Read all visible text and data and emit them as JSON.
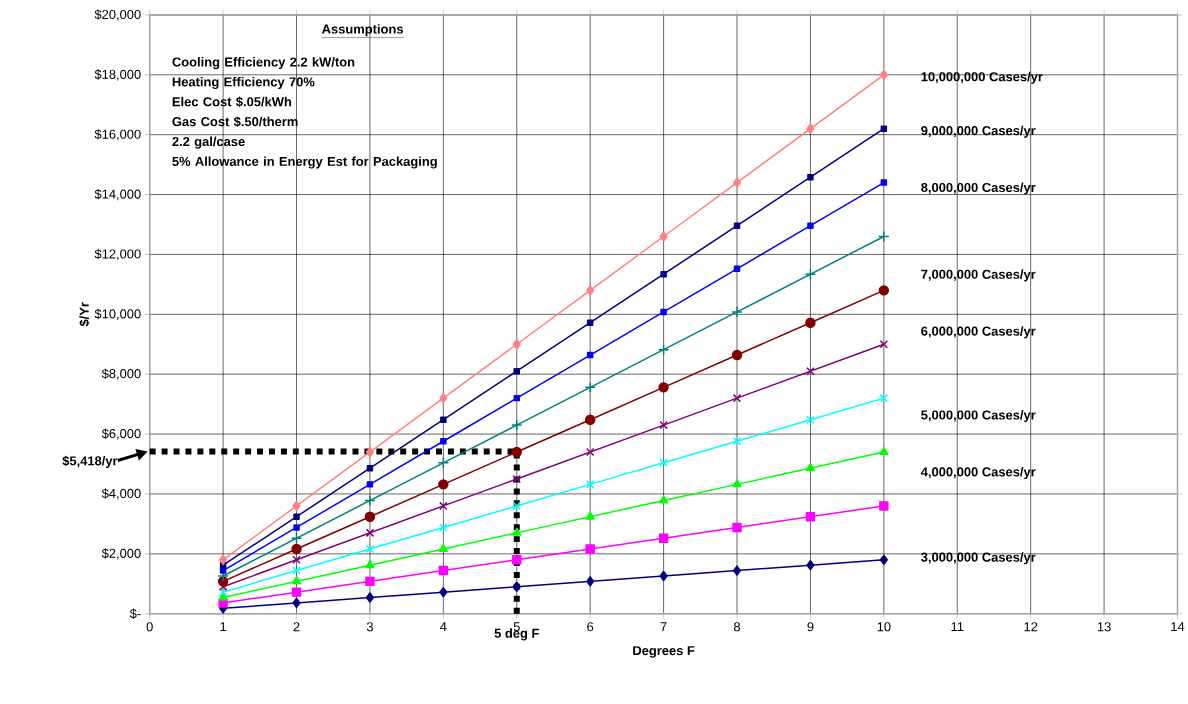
{
  "chart_data": {
    "type": "line",
    "xlabel": "Degrees F",
    "ylabel": "$/Yr",
    "x": [
      1,
      2,
      3,
      4,
      5,
      6,
      7,
      8,
      9,
      10
    ],
    "series": [
      {
        "color": "#000080",
        "marker": "diamond",
        "values": [
          180,
          360,
          540,
          720,
          900,
          1080,
          1260,
          1440,
          1620,
          1800
        ]
      },
      {
        "color": "#ff00ff",
        "marker": "square",
        "values": [
          360,
          720,
          1080,
          1440,
          1800,
          2160,
          2520,
          2880,
          3240,
          3600
        ]
      },
      {
        "color": "#00ff00",
        "marker": "triangle",
        "values": [
          540,
          1080,
          1620,
          2160,
          2700,
          3240,
          3780,
          4320,
          4860,
          5400
        ]
      },
      {
        "color": "#00ffff",
        "marker": "cross",
        "values": [
          720,
          1440,
          2160,
          2880,
          3600,
          4320,
          5040,
          5760,
          6480,
          7200
        ]
      },
      {
        "color": "#800080",
        "marker": "cross",
        "values": [
          900,
          1800,
          2700,
          3600,
          4500,
          5400,
          6300,
          7200,
          8100,
          9000
        ]
      },
      {
        "color": "#800000",
        "marker": "circle",
        "values": [
          1080,
          2160,
          3240,
          4320,
          5400,
          6480,
          7560,
          8640,
          9720,
          10800
        ]
      },
      {
        "color": "#008080",
        "marker": "plus",
        "values": [
          1260,
          2520,
          3780,
          5040,
          6300,
          7560,
          8820,
          10080,
          11340,
          12600
        ]
      },
      {
        "color": "#0000ff",
        "marker": "square",
        "values": [
          1440,
          2880,
          4320,
          5760,
          7200,
          8640,
          10080,
          11520,
          12960,
          14400
        ]
      },
      {
        "color": "#000080",
        "marker": "square",
        "values": [
          1620,
          3240,
          4860,
          6480,
          8100,
          9720,
          11340,
          12960,
          14580,
          16200
        ]
      },
      {
        "color": "#ff8080",
        "marker": "diamond",
        "values": [
          1800,
          3600,
          5400,
          7200,
          9000,
          10800,
          12600,
          14400,
          16200,
          18000
        ]
      }
    ],
    "xlim": [
      0,
      14
    ],
    "ylim": [
      0,
      20000
    ],
    "xticks": [
      0,
      1,
      2,
      3,
      4,
      5,
      6,
      7,
      8,
      9,
      10,
      11,
      12,
      13,
      14
    ],
    "yticks": [
      {
        "value": 0,
        "label": "$-"
      },
      {
        "value": 2000,
        "label": "$2,000"
      },
      {
        "value": 4000,
        "label": "$4,000"
      },
      {
        "value": 6000,
        "label": "$6,000"
      },
      {
        "value": 8000,
        "label": "$8,000"
      },
      {
        "value": 10000,
        "label": "$10,000"
      },
      {
        "value": 12000,
        "label": "$12,000"
      },
      {
        "value": 14000,
        "label": "$14,000"
      },
      {
        "value": 16000,
        "label": "$16,000"
      },
      {
        "value": 18000,
        "label": "$18,000"
      },
      {
        "value": 20000,
        "label": "$20,000"
      }
    ],
    "grid": true,
    "ref_lines": [
      {
        "axis": "y",
        "value": 5418,
        "label": "$5,418/yr",
        "color": "#000000",
        "line_style": "dotted"
      },
      {
        "axis": "x",
        "value": 5,
        "label": "5 deg F",
        "color": "#000000",
        "line_style": "dotted"
      }
    ],
    "annotations": [
      "Assumptions",
      "Cooling Efficiency  2.2  kW/ton",
      "Heating Efficiency 70%",
      "Elec Cost  $.05/kWh",
      "Gas Cost  $.50/therm",
      "2.2 gal/case",
      "5% Allowance in  Energy  Est for Packaging",
      "10,000,000 Cases/yr",
      "9,000,000 Cases/yr",
      "8,000,000 Cases/yr",
      "7,000,000 Cases/yr",
      "6,000,000 Cases/yr",
      "5,000,000 Cases/yr",
      "4,000,000 Cases/yr",
      "3,000,000 Cases/yr"
    ]
  }
}
